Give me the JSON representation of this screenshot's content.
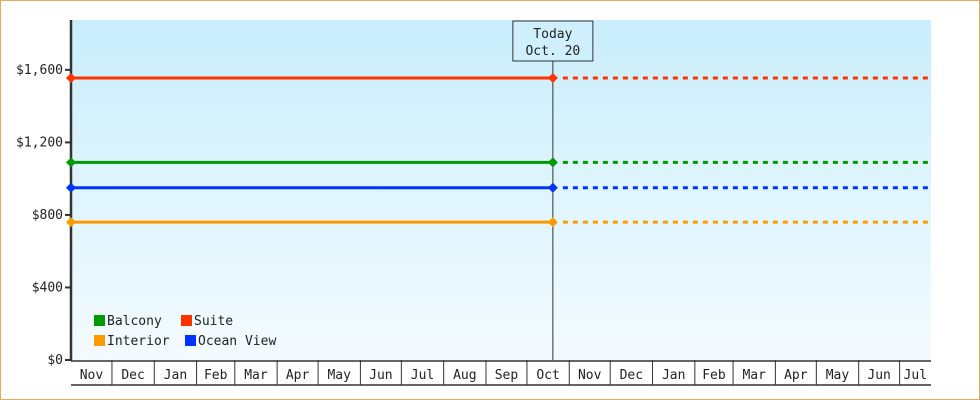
{
  "chart_data": {
    "type": "line",
    "title": "",
    "xlabel": "",
    "ylabel": "",
    "ylim": [
      0,
      1875
    ],
    "yticks": [
      0,
      400,
      800,
      1200,
      1600
    ],
    "ytick_labels": [
      "$0",
      "$400",
      "$800",
      "$1,200",
      "$1,600"
    ],
    "x_months": [
      "Nov",
      "Dec",
      "Jan",
      "Feb",
      "Mar",
      "Apr",
      "May",
      "Jun",
      "Jul",
      "Aug",
      "Sep",
      "Oct",
      "Nov",
      "Dec",
      "Jan",
      "Feb",
      "Mar",
      "Apr",
      "May",
      "Jun",
      "Jul"
    ],
    "x_start": "Nov",
    "today_marker": {
      "line1": "Today",
      "line2": "Oct. 20"
    },
    "grid": false,
    "legend_placement": "bottom-left",
    "series": [
      {
        "name": "Balcony",
        "color": "#009900",
        "value": 1090,
        "style_past": "solid",
        "style_future": "dashed"
      },
      {
        "name": "Suite",
        "color": "#ff3300",
        "value": 1555,
        "style_past": "solid",
        "style_future": "dashed"
      },
      {
        "name": "Interior",
        "color": "#ff9900",
        "value": 760,
        "style_past": "solid",
        "style_future": "dashed"
      },
      {
        "name": "Ocean View",
        "color": "#0033ff",
        "value": 950,
        "style_past": "solid",
        "style_future": "dashed"
      }
    ],
    "background_gradient": [
      "#c9eefc",
      "#f4fbff"
    ]
  }
}
